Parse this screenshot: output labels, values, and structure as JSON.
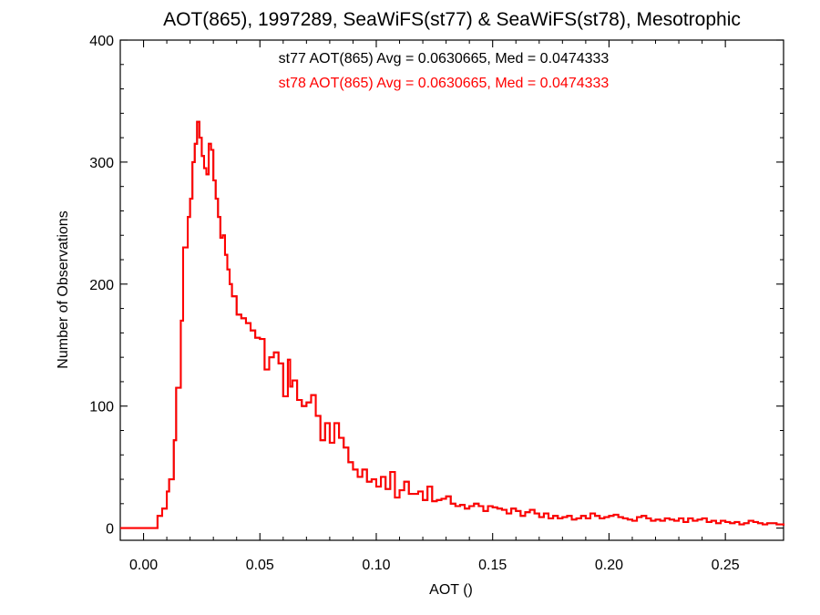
{
  "chart_data": {
    "type": "line",
    "title": "AOT(865), 1997289, SeaWiFS(st77) & SeaWiFS(st78), Mesotrophic",
    "xlabel": "AOT ()",
    "ylabel": "Number of Observations",
    "xlim": [
      -0.01,
      0.275
    ],
    "ylim": [
      -10,
      400
    ],
    "xticks": [
      0.0,
      0.05,
      0.1,
      0.15,
      0.2,
      0.25
    ],
    "xticklabels": [
      "0.00",
      "0.05",
      "0.10",
      "0.15",
      "0.20",
      "0.25"
    ],
    "yticks": [
      0,
      100,
      200,
      300,
      400
    ],
    "yticklabels": [
      "0",
      "100",
      "200",
      "300",
      "400"
    ],
    "grid": false,
    "legend": "top-center text annotations",
    "annotations": [
      {
        "text": "st77 AOT(865) Avg = 0.0630665, Med = 0.0474333",
        "color": "#000000"
      },
      {
        "text": "st78 AOT(865) Avg = 0.0630665, Med = 0.0474333",
        "color": "#ff0000"
      }
    ],
    "series": [
      {
        "color": "#000000",
        "x": [
          -0.01,
          0.0,
          0.003,
          0.005,
          0.006,
          0.008,
          0.01,
          0.011,
          0.013,
          0.014,
          0.016,
          0.017,
          0.019,
          0.02,
          0.021,
          0.022,
          0.023,
          0.024,
          0.025,
          0.026,
          0.027,
          0.028,
          0.029,
          0.03,
          0.031,
          0.032,
          0.033,
          0.034,
          0.035,
          0.036,
          0.037,
          0.038,
          0.04,
          0.042,
          0.044,
          0.046,
          0.048,
          0.05,
          0.052,
          0.054,
          0.056,
          0.058,
          0.06,
          0.062,
          0.063,
          0.064,
          0.066,
          0.068,
          0.07,
          0.072,
          0.074,
          0.076,
          0.078,
          0.08,
          0.082,
          0.084,
          0.086,
          0.088,
          0.09,
          0.092,
          0.094,
          0.096,
          0.098,
          0.1,
          0.102,
          0.104,
          0.106,
          0.108,
          0.11,
          0.112,
          0.114,
          0.116,
          0.118,
          0.12,
          0.122,
          0.124,
          0.126,
          0.128,
          0.13,
          0.132,
          0.134,
          0.136,
          0.138,
          0.14,
          0.142,
          0.144,
          0.146,
          0.148,
          0.15,
          0.152,
          0.154,
          0.156,
          0.158,
          0.16,
          0.162,
          0.164,
          0.166,
          0.168,
          0.17,
          0.172,
          0.174,
          0.176,
          0.178,
          0.18,
          0.182,
          0.184,
          0.186,
          0.188,
          0.19,
          0.192,
          0.194,
          0.196,
          0.198,
          0.2,
          0.202,
          0.204,
          0.206,
          0.208,
          0.21,
          0.212,
          0.214,
          0.216,
          0.218,
          0.22,
          0.222,
          0.224,
          0.226,
          0.228,
          0.23,
          0.232,
          0.234,
          0.236,
          0.238,
          0.24,
          0.242,
          0.244,
          0.246,
          0.248,
          0.25,
          0.252,
          0.254,
          0.256,
          0.258,
          0.26,
          0.262,
          0.264,
          0.266,
          0.268,
          0.27,
          0.272,
          0.275
        ],
        "y": [
          0,
          0,
          0,
          0,
          10,
          16,
          30,
          40,
          72,
          115,
          170,
          230,
          255,
          270,
          300,
          315,
          333,
          320,
          305,
          295,
          290,
          315,
          310,
          285,
          270,
          255,
          238,
          240,
          224,
          212,
          200,
          190,
          175,
          172,
          168,
          162,
          156,
          155,
          130,
          140,
          144,
          135,
          108,
          138,
          116,
          121,
          105,
          100,
          103,
          109,
          92,
          72,
          86,
          70,
          86,
          74,
          66,
          54,
          48,
          42,
          48,
          38,
          40,
          34,
          42,
          32,
          46,
          25,
          31,
          38,
          28,
          28,
          30,
          23,
          34,
          22,
          23,
          24,
          26,
          20,
          18,
          19,
          16,
          18,
          20,
          18,
          14,
          18,
          17,
          16,
          15,
          12,
          16,
          14,
          10,
          13,
          15,
          12,
          9,
          12,
          8,
          10,
          8,
          9,
          10,
          7,
          8,
          10,
          8,
          12,
          10,
          8,
          9,
          10,
          11,
          9,
          8,
          7,
          6,
          9,
          10,
          8,
          6,
          7,
          6,
          8,
          7,
          6,
          8,
          5,
          8,
          6,
          7,
          8,
          5,
          6,
          4,
          6,
          5,
          4,
          5,
          3,
          4,
          6,
          5,
          4,
          3,
          4,
          4,
          3,
          2
        ]
      },
      {
        "color": "#ff0000",
        "x": [
          -0.01,
          0.0,
          0.003,
          0.005,
          0.006,
          0.008,
          0.01,
          0.011,
          0.013,
          0.014,
          0.016,
          0.017,
          0.019,
          0.02,
          0.021,
          0.022,
          0.023,
          0.024,
          0.025,
          0.026,
          0.027,
          0.028,
          0.029,
          0.03,
          0.031,
          0.032,
          0.033,
          0.034,
          0.035,
          0.036,
          0.037,
          0.038,
          0.04,
          0.042,
          0.044,
          0.046,
          0.048,
          0.05,
          0.052,
          0.054,
          0.056,
          0.058,
          0.06,
          0.062,
          0.063,
          0.064,
          0.066,
          0.068,
          0.07,
          0.072,
          0.074,
          0.076,
          0.078,
          0.08,
          0.082,
          0.084,
          0.086,
          0.088,
          0.09,
          0.092,
          0.094,
          0.096,
          0.098,
          0.1,
          0.102,
          0.104,
          0.106,
          0.108,
          0.11,
          0.112,
          0.114,
          0.116,
          0.118,
          0.12,
          0.122,
          0.124,
          0.126,
          0.128,
          0.13,
          0.132,
          0.134,
          0.136,
          0.138,
          0.14,
          0.142,
          0.144,
          0.146,
          0.148,
          0.15,
          0.152,
          0.154,
          0.156,
          0.158,
          0.16,
          0.162,
          0.164,
          0.166,
          0.168,
          0.17,
          0.172,
          0.174,
          0.176,
          0.178,
          0.18,
          0.182,
          0.184,
          0.186,
          0.188,
          0.19,
          0.192,
          0.194,
          0.196,
          0.198,
          0.2,
          0.202,
          0.204,
          0.206,
          0.208,
          0.21,
          0.212,
          0.214,
          0.216,
          0.218,
          0.22,
          0.222,
          0.224,
          0.226,
          0.228,
          0.23,
          0.232,
          0.234,
          0.236,
          0.238,
          0.24,
          0.242,
          0.244,
          0.246,
          0.248,
          0.25,
          0.252,
          0.254,
          0.256,
          0.258,
          0.26,
          0.262,
          0.264,
          0.266,
          0.268,
          0.27,
          0.272,
          0.275
        ],
        "y": [
          0,
          0,
          0,
          0,
          10,
          16,
          30,
          40,
          72,
          115,
          170,
          230,
          255,
          270,
          300,
          315,
          333,
          320,
          305,
          295,
          290,
          315,
          310,
          285,
          270,
          255,
          238,
          240,
          224,
          212,
          200,
          190,
          175,
          172,
          168,
          162,
          156,
          155,
          130,
          140,
          144,
          135,
          108,
          138,
          116,
          121,
          105,
          100,
          103,
          109,
          92,
          72,
          86,
          70,
          86,
          74,
          66,
          54,
          48,
          42,
          48,
          38,
          40,
          34,
          42,
          32,
          46,
          25,
          31,
          38,
          28,
          28,
          30,
          23,
          34,
          22,
          23,
          24,
          26,
          20,
          18,
          19,
          16,
          18,
          20,
          18,
          14,
          18,
          17,
          16,
          15,
          12,
          16,
          14,
          10,
          13,
          15,
          12,
          9,
          12,
          8,
          10,
          8,
          9,
          10,
          7,
          8,
          10,
          8,
          12,
          10,
          8,
          9,
          10,
          11,
          9,
          8,
          7,
          6,
          9,
          10,
          8,
          6,
          7,
          6,
          8,
          7,
          6,
          8,
          5,
          8,
          6,
          7,
          8,
          5,
          6,
          4,
          6,
          5,
          4,
          5,
          3,
          4,
          6,
          5,
          4,
          3,
          4,
          4,
          3,
          2
        ]
      }
    ]
  }
}
